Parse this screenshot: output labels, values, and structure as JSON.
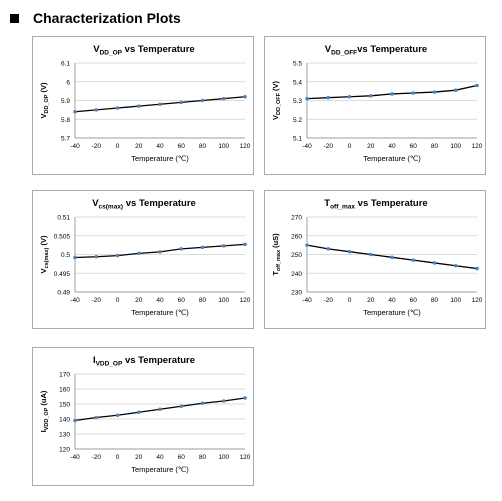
{
  "page": {
    "heading": "Characterization Plots"
  },
  "chart_data": [
    {
      "type": "line",
      "title_main": "V",
      "title_sub": "DD_OP",
      "title_rest": " vs Temperature",
      "ylabel_main": "V",
      "ylabel_sub": "DD_OP",
      "ylabel_rest": " (V)",
      "xlabel": "Temperature (℃)",
      "x": [
        -40,
        -20,
        0,
        20,
        40,
        60,
        80,
        100,
        120
      ],
      "y": [
        5.84,
        5.85,
        5.86,
        5.87,
        5.88,
        5.89,
        5.9,
        5.91,
        5.92
      ],
      "xlim": [
        -40,
        120
      ],
      "xticks": [
        -40,
        -20,
        0,
        20,
        40,
        60,
        80,
        100,
        120
      ],
      "ylim": [
        5.7,
        6.1
      ],
      "yticks": [
        "5.7",
        "5.8",
        "5.9",
        "6",
        "6.1"
      ],
      "grid": true,
      "line_color": "#000000",
      "marker_color": "#4f81bd"
    },
    {
      "type": "line",
      "title_main": "V",
      "title_sub": "DD_OFF",
      "title_rest": "vs Temperature",
      "ylabel_main": "V",
      "ylabel_sub": "DD_OFF",
      "ylabel_rest": " (V)",
      "xlabel": "Temperature (℃)",
      "x": [
        -40,
        -20,
        0,
        20,
        40,
        60,
        80,
        100,
        120
      ],
      "y": [
        5.31,
        5.315,
        5.32,
        5.325,
        5.335,
        5.34,
        5.345,
        5.355,
        5.38
      ],
      "xlim": [
        -40,
        120
      ],
      "xticks": [
        -40,
        -20,
        0,
        20,
        40,
        60,
        80,
        100,
        120
      ],
      "ylim": [
        5.1,
        5.5
      ],
      "yticks": [
        "5.1",
        "5.2",
        "5.3",
        "5.4",
        "5.5"
      ],
      "grid": true,
      "line_color": "#000000",
      "marker_color": "#4f81bd"
    },
    {
      "type": "line",
      "title_main": "V",
      "title_sub": "cs(max)",
      "title_rest": " vs Temperature",
      "ylabel_main": "V",
      "ylabel_sub": "cs(max)",
      "ylabel_rest": " (V)",
      "xlabel": "Temperature (℃)",
      "x": [
        -40,
        -20,
        0,
        20,
        40,
        60,
        80,
        100,
        120
      ],
      "y": [
        0.4992,
        0.4994,
        0.4997,
        0.5003,
        0.5007,
        0.5015,
        0.5019,
        0.5023,
        0.5027
      ],
      "xlim": [
        -40,
        120
      ],
      "xticks": [
        -40,
        -20,
        0,
        20,
        40,
        60,
        80,
        100,
        120
      ],
      "ylim": [
        0.49,
        0.51
      ],
      "yticks": [
        "0.49",
        "0.495",
        "0.5",
        "0.505",
        "0.51"
      ],
      "grid": true,
      "line_color": "#000000",
      "marker_color": "#4f81bd"
    },
    {
      "type": "line",
      "title_main": "T",
      "title_sub": "off_max",
      "title_rest": " vs Temperature",
      "ylabel_main": "T",
      "ylabel_sub": "off_max",
      "ylabel_rest": " (uS)",
      "xlabel": "Temperature (℃)",
      "x": [
        -40,
        -20,
        0,
        20,
        40,
        60,
        80,
        100,
        120
      ],
      "y": [
        255,
        253,
        251.5,
        250,
        248.5,
        247,
        245.5,
        244,
        242.5
      ],
      "xlim": [
        -40,
        120
      ],
      "xticks": [
        -40,
        -20,
        0,
        20,
        40,
        60,
        80,
        100,
        120
      ],
      "ylim": [
        230,
        270
      ],
      "yticks": [
        "230",
        "240",
        "250",
        "260",
        "270"
      ],
      "grid": true,
      "line_color": "#000000",
      "marker_color": "#4f81bd"
    },
    {
      "type": "line",
      "title_main": "I",
      "title_sub": "VDD_OP",
      "title_rest": " vs Temperature",
      "ylabel_main": "I",
      "ylabel_sub": "VDD_OP",
      "ylabel_rest": " (uA)",
      "xlabel": "Temperature (℃)",
      "x": [
        -40,
        -20,
        0,
        20,
        40,
        60,
        80,
        100,
        120
      ],
      "y": [
        139,
        141,
        142.5,
        144.5,
        146.5,
        148.5,
        150.5,
        152,
        154
      ],
      "xlim": [
        -40,
        120
      ],
      "xticks": [
        -40,
        -20,
        0,
        20,
        40,
        60,
        80,
        100,
        120
      ],
      "ylim": [
        120,
        170
      ],
      "yticks": [
        "120",
        "130",
        "140",
        "150",
        "160",
        "170"
      ],
      "grid": true,
      "line_color": "#000000",
      "marker_color": "#4f81bd"
    }
  ]
}
